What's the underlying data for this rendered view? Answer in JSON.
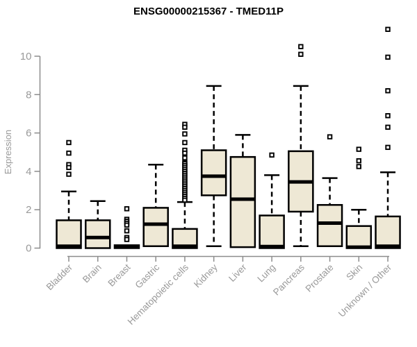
{
  "title": "ENSG00000215367 - TMED11P",
  "chart_data": {
    "type": "boxplot",
    "title": "ENSG00000215367 - TMED11P",
    "ylabel": "Expression",
    "ylim": [
      0,
      11.5
    ],
    "yticks": [
      0,
      2,
      4,
      6,
      8,
      10
    ],
    "grid": false,
    "legend_position": "none",
    "categories": [
      "Bladder",
      "Brain",
      "Breast",
      "Gastric",
      "Hematopoietic cells",
      "Kidney",
      "Liver",
      "Lung",
      "Pancreas",
      "Prostate",
      "Skin",
      "Unknown / Other"
    ],
    "series": [
      {
        "name": "Bladder",
        "low": 0,
        "q1": 0,
        "median": 0.1,
        "q3": 1.45,
        "high": 2.95,
        "outliers": [
          5.5,
          4.95,
          4.35,
          4.2,
          3.85
        ]
      },
      {
        "name": "Brain",
        "low": 0,
        "q1": 0,
        "median": 0.55,
        "q3": 1.45,
        "high": 2.45,
        "outliers": []
      },
      {
        "name": "Breast",
        "low": 0,
        "q1": 0,
        "median": 0.07,
        "q3": 0.15,
        "high": 0.15,
        "outliers": [
          2.05,
          1.5,
          1.4,
          1.3,
          1.2,
          0.9,
          0.55,
          0.45
        ]
      },
      {
        "name": "Gastric",
        "low": 0.1,
        "q1": 0.1,
        "median": 1.25,
        "q3": 2.1,
        "high": 4.35,
        "outliers": []
      },
      {
        "name": "Hematopoietic cells",
        "low": 0,
        "q1": 0,
        "median": 0.1,
        "q3": 1.0,
        "high": 2.4,
        "outliers": [
          6.45,
          6.3,
          5.95,
          5.5,
          5.1,
          4.95,
          4.7,
          4.45,
          4.4,
          4.3,
          4.2,
          4.1,
          4.0,
          3.9,
          3.8,
          3.7,
          3.6,
          3.5,
          3.4,
          3.3,
          3.2,
          3.1,
          3.0,
          2.9,
          2.8,
          2.7,
          2.6,
          2.5
        ]
      },
      {
        "name": "Kidney",
        "low": 0.1,
        "q1": 2.75,
        "median": 3.75,
        "q3": 5.1,
        "high": 8.45,
        "outliers": []
      },
      {
        "name": "Liver",
        "low": 0,
        "q1": 0.05,
        "median": 2.55,
        "q3": 4.75,
        "high": 5.9,
        "outliers": []
      },
      {
        "name": "Lung",
        "low": 0,
        "q1": 0,
        "median": 0.08,
        "q3": 1.7,
        "high": 3.8,
        "outliers": [
          4.85
        ]
      },
      {
        "name": "Pancreas",
        "low": 0.1,
        "q1": 1.9,
        "median": 3.45,
        "q3": 5.05,
        "high": 8.45,
        "outliers": [
          10.5,
          10.1
        ]
      },
      {
        "name": "Prostate",
        "low": 0.1,
        "q1": 0.1,
        "median": 1.3,
        "q3": 2.25,
        "high": 3.65,
        "outliers": [
          5.8
        ]
      },
      {
        "name": "Skin",
        "low": 0,
        "q1": 0,
        "median": 0.05,
        "q3": 1.15,
        "high": 2.0,
        "outliers": [
          5.15,
          4.55,
          4.25
        ]
      },
      {
        "name": "Unknown / Other",
        "low": 0,
        "q1": 0,
        "median": 0.1,
        "q3": 1.65,
        "high": 3.95,
        "outliers": [
          11.4,
          9.95,
          8.2,
          6.9,
          6.3,
          5.25
        ]
      }
    ],
    "colors": {
      "box_fill": "#EEE8D5",
      "box_stroke": "#000000",
      "median": "#000000",
      "whisker": "#000000",
      "outlier_stroke": "#000000",
      "outlier_fill": "#ffffff",
      "axis": "#8c8c8c",
      "text": "#999999",
      "title": "#000000",
      "background": "#ffffff"
    }
  }
}
